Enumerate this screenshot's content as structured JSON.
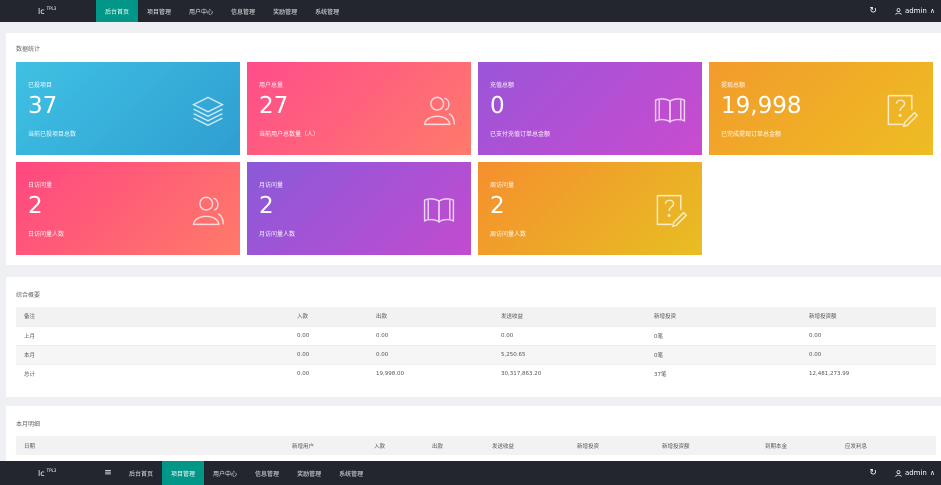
{
  "header": {
    "logo": "lc",
    "logo_sup": "TPL3",
    "nav": [
      "后台首页",
      "项目管理",
      "用户中心",
      "信息管理",
      "奖励管理",
      "系统管理"
    ],
    "active_index": 0,
    "user": "admin",
    "user_icon": "person-icon",
    "refresh_icon": "refresh-icon"
  },
  "footer_bar": {
    "logo": "lc",
    "logo_sup": "TPL3",
    "menu_icon": "≡",
    "nav": [
      "后台首页",
      "项目管理",
      "用户中心",
      "信息管理",
      "奖励管理",
      "系统管理"
    ],
    "active_index": 1,
    "user": "admin"
  },
  "stats": {
    "title": "数据统计",
    "cards": [
      {
        "label": "已投项目",
        "value": "37",
        "desc": "当前已投项目总数",
        "icon": "layers-icon",
        "color": "#3fb6e0"
      },
      {
        "label": "用户总量",
        "value": "27",
        "desc": "当前用户总数量（人）",
        "icon": "users-icon",
        "color": "#ff5a82"
      },
      {
        "label": "充值总额",
        "value": "0",
        "desc": "已支付充值订单总金额",
        "icon": "book-icon",
        "color": "#b150d4"
      },
      {
        "label": "提现总额",
        "value": "19,998",
        "desc": "已完成提现订单总金额",
        "icon": "question-note-icon",
        "color": "#f0ab28"
      },
      {
        "label": "日访问量",
        "value": "2",
        "desc": "日访问量人数",
        "icon": "users-icon",
        "color": "#ff5a7a"
      },
      {
        "label": "月访问量",
        "value": "2",
        "desc": "月访问量人数",
        "icon": "book-icon",
        "color": "#a453d4"
      },
      {
        "label": "周访问量",
        "value": "2",
        "desc": "周访问量人数",
        "icon": "question-note-icon",
        "color": "#efa62a"
      }
    ]
  },
  "overview": {
    "title": "综合概要",
    "columns": [
      "备注",
      "入款",
      "出款",
      "发送收益",
      "新增投资",
      "新增投资额"
    ],
    "rows": [
      [
        "上月",
        "0.00",
        "0.00",
        "0.00",
        "0笔",
        "0.00"
      ],
      [
        "本月",
        "0.00",
        "0.00",
        "5,250.65",
        "0笔",
        "0.00"
      ],
      [
        "总计",
        "0.00",
        "19,998.00",
        "30,317,863.20",
        "37笔",
        "12,481,273.99"
      ]
    ]
  },
  "monthly": {
    "title": "本月明细",
    "columns": [
      "日期",
      "新增用户",
      "入款",
      "出款",
      "发送收益",
      "新增投资",
      "新增投资额",
      "到期本金",
      "应发利息"
    ]
  }
}
